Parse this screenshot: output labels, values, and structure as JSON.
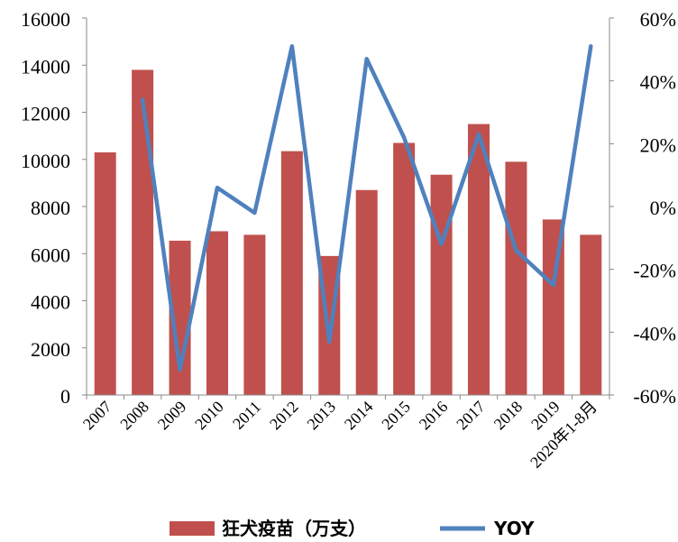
{
  "chart_data": {
    "type": "bar",
    "categories": [
      "2007",
      "2008",
      "2009",
      "2010",
      "2011",
      "2012",
      "2013",
      "2014",
      "2015",
      "2016",
      "2017",
      "2018",
      "2019",
      "2020年1-8月"
    ],
    "series": [
      {
        "name": "狂犬疫苗（万支）",
        "type": "bar",
        "axis": "left",
        "color": "#c0504d",
        "values": [
          10300,
          13800,
          6550,
          6950,
          6800,
          10350,
          5900,
          8700,
          10700,
          9350,
          11500,
          9900,
          7450,
          6800
        ]
      },
      {
        "name": "YOY",
        "type": "line",
        "axis": "right",
        "color": "#4f81bd",
        "values": [
          null,
          34,
          -52,
          6,
          -2,
          51,
          -43,
          47,
          22,
          -12,
          23,
          -14,
          -25,
          51
        ]
      }
    ],
    "y_left": {
      "ylim": [
        0,
        16000
      ],
      "ticks": [
        "0",
        "2000",
        "4000",
        "6000",
        "8000",
        "10000",
        "12000",
        "14000",
        "16000"
      ]
    },
    "y_right": {
      "ylim": [
        -60,
        60
      ],
      "ticks": [
        "-60%",
        "-40%",
        "-20%",
        "0%",
        "20%",
        "40%",
        "60%"
      ]
    },
    "grid": false,
    "legend": "bottom",
    "title": "",
    "xlabel": "",
    "ylabel": ""
  }
}
